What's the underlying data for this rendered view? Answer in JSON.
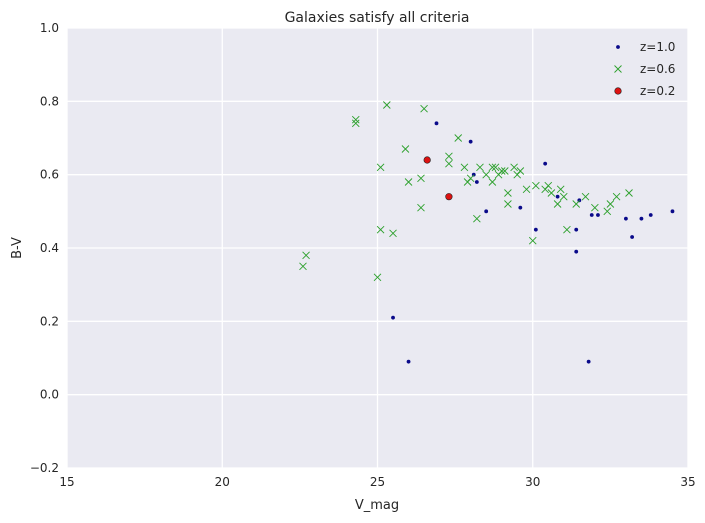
{
  "chart_data": {
    "type": "scatter",
    "title": "Galaxies satisfy all criteria",
    "xlabel": "V_mag",
    "ylabel": "B-V",
    "xlim": [
      15,
      35
    ],
    "ylim": [
      -0.2,
      1.0
    ],
    "xticks": [
      "15",
      "20",
      "25",
      "30",
      "35"
    ],
    "yticks": [
      "−0.2",
      "0.0",
      "0.2",
      "0.4",
      "0.6",
      "0.8",
      "1.0"
    ],
    "grid": true,
    "legend_position": "top-right",
    "series": [
      {
        "name": "z=1.0",
        "marker": "dot",
        "color": "#0a0a8a",
        "points": [
          [
            25.5,
            0.21
          ],
          [
            26.0,
            0.09
          ],
          [
            26.9,
            0.74
          ],
          [
            28.0,
            0.69
          ],
          [
            28.1,
            0.6
          ],
          [
            28.2,
            0.58
          ],
          [
            28.5,
            0.5
          ],
          [
            29.6,
            0.51
          ],
          [
            30.1,
            0.45
          ],
          [
            30.4,
            0.63
          ],
          [
            30.8,
            0.54
          ],
          [
            31.4,
            0.45
          ],
          [
            31.4,
            0.39
          ],
          [
            31.5,
            0.53
          ],
          [
            31.8,
            0.09
          ],
          [
            31.9,
            0.49
          ],
          [
            32.1,
            0.49
          ],
          [
            33.0,
            0.48
          ],
          [
            33.2,
            0.43
          ],
          [
            33.5,
            0.48
          ],
          [
            33.8,
            0.49
          ],
          [
            34.5,
            0.5
          ]
        ]
      },
      {
        "name": "z=0.6",
        "marker": "x",
        "color": "#2ca02c",
        "points": [
          [
            22.6,
            0.35
          ],
          [
            22.7,
            0.38
          ],
          [
            24.3,
            0.75
          ],
          [
            24.3,
            0.74
          ],
          [
            25.0,
            0.32
          ],
          [
            25.1,
            0.62
          ],
          [
            25.1,
            0.45
          ],
          [
            25.3,
            0.79
          ],
          [
            25.5,
            0.44
          ],
          [
            25.9,
            0.67
          ],
          [
            26.0,
            0.58
          ],
          [
            26.4,
            0.51
          ],
          [
            26.4,
            0.59
          ],
          [
            26.5,
            0.78
          ],
          [
            27.3,
            0.65
          ],
          [
            27.3,
            0.63
          ],
          [
            27.6,
            0.7
          ],
          [
            27.8,
            0.62
          ],
          [
            27.9,
            0.58
          ],
          [
            28.0,
            0.59
          ],
          [
            28.2,
            0.48
          ],
          [
            28.3,
            0.62
          ],
          [
            28.5,
            0.6
          ],
          [
            28.7,
            0.58
          ],
          [
            28.7,
            0.62
          ],
          [
            28.8,
            0.62
          ],
          [
            28.9,
            0.6
          ],
          [
            29.0,
            0.61
          ],
          [
            29.1,
            0.61
          ],
          [
            29.2,
            0.52
          ],
          [
            29.2,
            0.55
          ],
          [
            29.4,
            0.62
          ],
          [
            29.5,
            0.6
          ],
          [
            29.6,
            0.61
          ],
          [
            29.8,
            0.56
          ],
          [
            30.0,
            0.42
          ],
          [
            30.1,
            0.57
          ],
          [
            30.4,
            0.56
          ],
          [
            30.5,
            0.57
          ],
          [
            30.6,
            0.55
          ],
          [
            30.8,
            0.52
          ],
          [
            30.9,
            0.56
          ],
          [
            31.0,
            0.54
          ],
          [
            31.1,
            0.45
          ],
          [
            31.4,
            0.52
          ],
          [
            31.7,
            0.54
          ],
          [
            32.0,
            0.51
          ],
          [
            32.4,
            0.5
          ],
          [
            32.5,
            0.52
          ],
          [
            32.7,
            0.54
          ],
          [
            33.1,
            0.55
          ]
        ]
      },
      {
        "name": "z=0.2",
        "marker": "circle",
        "color": "#dd1111",
        "points": [
          [
            26.6,
            0.64
          ],
          [
            27.3,
            0.54
          ]
        ]
      }
    ]
  }
}
